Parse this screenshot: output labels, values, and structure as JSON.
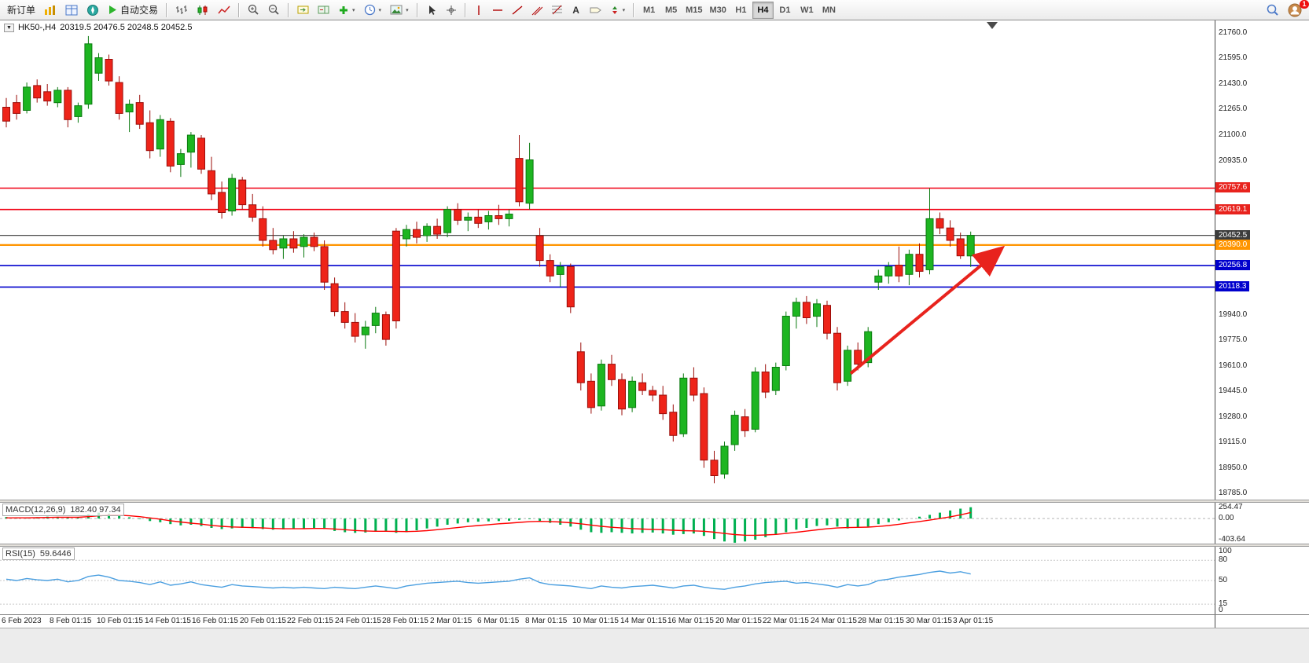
{
  "toolbar": {
    "new_order": "新订单",
    "autotrading": "自动交易",
    "timeframes": [
      "M1",
      "M5",
      "M15",
      "M30",
      "H1",
      "H4",
      "D1",
      "W1",
      "MN"
    ],
    "active_timeframe": "H4",
    "notification_count": "1"
  },
  "icons": {
    "chevron": "▾",
    "title_caret": "▼",
    "text_tool": "A"
  },
  "colors": {
    "up": "#1db521",
    "up_stroke": "#0b7a10",
    "down": "#ee2419",
    "down_stroke": "#9b0e0a",
    "macd_hist": "#00b050",
    "macd_signal": "#ff0000",
    "rsi_line": "#4b9fe0",
    "annotation": "#e8231d"
  },
  "chart": {
    "symbol_period": "HK50-,H4",
    "ohlc_text": "20319.5 20476.5 20248.5 20452.5",
    "axis_ticks": [
      21760,
      21595,
      21430,
      21265,
      21100,
      20935,
      19940,
      19775,
      19610,
      19445,
      19280,
      19115,
      18950,
      18785
    ],
    "levels": [
      {
        "label": "20757.6",
        "price": 20757.6,
        "color": "#f00013",
        "line_width": 1.6,
        "badge": "#e8231d"
      },
      {
        "label": "20619.1",
        "price": 20619.1,
        "color": "#f00013",
        "line_width": 1.6,
        "badge": "#e8231d"
      },
      {
        "label": "20452.5",
        "price": 20452.5,
        "color": "#4a4a4a",
        "line_width": 1.2,
        "badge": "#3c3c3c"
      },
      {
        "label": "20390.0",
        "price": 20390.0,
        "color": "#ff9500",
        "line_width": 2.2,
        "badge": "#ff9500"
      },
      {
        "label": "20256.8",
        "price": 20256.8,
        "color": "#0000cd",
        "line_width": 1.6,
        "badge": "#0000cd"
      },
      {
        "label": "20118.3",
        "price": 20118.3,
        "color": "#0000cd",
        "line_width": 1.6,
        "badge": "#0000cd"
      }
    ]
  },
  "macd": {
    "label": "MACD(12,26,9)",
    "values": "182.40 97.34",
    "axis_ticks": [
      254.47,
      0,
      -403.64
    ]
  },
  "rsi": {
    "label": "RSI(15)",
    "value": "59.6446",
    "levels": [
      80,
      50,
      15
    ],
    "axis_ticks": [
      100,
      80,
      50,
      15,
      0
    ]
  },
  "time_axis": [
    "6 Feb 2023",
    "8 Feb 01:15",
    "10 Feb 01:15",
    "14 Feb 01:15",
    "16 Feb 01:15",
    "20 Feb 01:15",
    "22 Feb 01:15",
    "24 Feb 01:15",
    "28 Feb 01:15",
    "2 Mar 01:15",
    "6 Mar 01:15",
    "8 Mar 01:15",
    "10 Mar 01:15",
    "14 Mar 01:15",
    "16 Mar 01:15",
    "20 Mar 01:15",
    "22 Mar 01:15",
    "24 Mar 01:15",
    "28 Mar 01:15",
    "30 Mar 01:15",
    "3 Apr 01:15"
  ],
  "chart_data": {
    "type": "candlestick",
    "symbol": "HK50-",
    "timeframe": "H4",
    "ylim": [
      18745,
      21841
    ],
    "last_ohlc": {
      "open": 20319.5,
      "high": 20476.5,
      "low": 20248.5,
      "close": 20452.5
    },
    "candles": [
      [
        21280,
        21340,
        21150,
        21190
      ],
      [
        21310,
        21360,
        21200,
        21240
      ],
      [
        21260,
        21440,
        21240,
        21410
      ],
      [
        21420,
        21460,
        21310,
        21340
      ],
      [
        21380,
        21430,
        21290,
        21320
      ],
      [
        21310,
        21410,
        21280,
        21390
      ],
      [
        21390,
        21410,
        21150,
        21200
      ],
      [
        21220,
        21310,
        21180,
        21290
      ],
      [
        21300,
        21740,
        21270,
        21690
      ],
      [
        21500,
        21630,
        21450,
        21600
      ],
      [
        21590,
        21620,
        21420,
        21450
      ],
      [
        21440,
        21480,
        21200,
        21240
      ],
      [
        21250,
        21330,
        21120,
        21300
      ],
      [
        21310,
        21360,
        21140,
        21170
      ],
      [
        21180,
        21260,
        20950,
        21000
      ],
      [
        21010,
        21230,
        20960,
        21200
      ],
      [
        21190,
        21210,
        20860,
        20900
      ],
      [
        20910,
        21010,
        20830,
        20980
      ],
      [
        20990,
        21120,
        20890,
        21100
      ],
      [
        21080,
        21100,
        20850,
        20880
      ],
      [
        20870,
        20960,
        20680,
        20720
      ],
      [
        20730,
        20800,
        20560,
        20600
      ],
      [
        20610,
        20850,
        20580,
        20820
      ],
      [
        20810,
        20830,
        20620,
        20650
      ],
      [
        20650,
        20720,
        20540,
        20570
      ],
      [
        20560,
        20640,
        20380,
        20420
      ],
      [
        20420,
        20500,
        20330,
        20360
      ],
      [
        20370,
        20450,
        20300,
        20430
      ],
      [
        20430,
        20480,
        20340,
        20370
      ],
      [
        20380,
        20460,
        20310,
        20440
      ],
      [
        20440,
        20470,
        20350,
        20380
      ],
      [
        20380,
        20420,
        20100,
        20150
      ],
      [
        20140,
        20180,
        19930,
        19960
      ],
      [
        19960,
        20020,
        19850,
        19890
      ],
      [
        19890,
        19950,
        19760,
        19800
      ],
      [
        19810,
        19900,
        19720,
        19860
      ],
      [
        19870,
        19990,
        19820,
        19950
      ],
      [
        19940,
        19960,
        19740,
        19780
      ],
      [
        20480,
        20500,
        19850,
        19900
      ],
      [
        20430,
        20520,
        20380,
        20490
      ],
      [
        20490,
        20540,
        20400,
        20440
      ],
      [
        20450,
        20530,
        20410,
        20510
      ],
      [
        20510,
        20560,
        20430,
        20460
      ],
      [
        20470,
        20640,
        20440,
        20620
      ],
      [
        20620,
        20660,
        20520,
        20550
      ],
      [
        20550,
        20600,
        20480,
        20570
      ],
      [
        20570,
        20620,
        20500,
        20530
      ],
      [
        20540,
        20610,
        20490,
        20580
      ],
      [
        20580,
        20650,
        20520,
        20560
      ],
      [
        20560,
        20620,
        20510,
        20590
      ],
      [
        20950,
        21100,
        20640,
        20670
      ],
      [
        20660,
        21050,
        20620,
        20940
      ],
      [
        20450,
        20500,
        20250,
        20290
      ],
      [
        20290,
        20330,
        20150,
        20190
      ],
      [
        20200,
        20280,
        20120,
        20250
      ],
      [
        20250,
        20270,
        19950,
        19990
      ],
      [
        19700,
        19760,
        19450,
        19500
      ],
      [
        19510,
        19560,
        19300,
        19340
      ],
      [
        19350,
        19650,
        19320,
        19620
      ],
      [
        19620,
        19680,
        19480,
        19520
      ],
      [
        19520,
        19560,
        19290,
        19330
      ],
      [
        19340,
        19540,
        19310,
        19510
      ],
      [
        19500,
        19560,
        19420,
        19450
      ],
      [
        19450,
        19480,
        19380,
        19420
      ],
      [
        19420,
        19480,
        19260,
        19300
      ],
      [
        19310,
        19360,
        19120,
        19160
      ],
      [
        19170,
        19560,
        19150,
        19530
      ],
      [
        19530,
        19600,
        19380,
        19420
      ],
      [
        19430,
        19470,
        18950,
        19000
      ],
      [
        19000,
        19060,
        18850,
        18900
      ],
      [
        18910,
        19120,
        18880,
        19090
      ],
      [
        19100,
        19320,
        19060,
        19290
      ],
      [
        19280,
        19330,
        19150,
        19190
      ],
      [
        19200,
        19600,
        19180,
        19570
      ],
      [
        19570,
        19620,
        19400,
        19440
      ],
      [
        19450,
        19630,
        19420,
        19600
      ],
      [
        19610,
        19960,
        19580,
        19930
      ],
      [
        19930,
        20050,
        19850,
        20020
      ],
      [
        20020,
        20060,
        19880,
        19920
      ],
      [
        19930,
        20040,
        19860,
        20010
      ],
      [
        20000,
        20030,
        19780,
        19820
      ],
      [
        19820,
        19860,
        19450,
        19500
      ],
      [
        19510,
        19740,
        19480,
        19710
      ],
      [
        19710,
        19760,
        19580,
        19620
      ],
      [
        19630,
        19860,
        19600,
        19830
      ],
      [
        20150,
        20230,
        20100,
        20190
      ],
      [
        20190,
        20280,
        20140,
        20250
      ],
      [
        20260,
        20380,
        20150,
        20190
      ],
      [
        20200,
        20360,
        20130,
        20330
      ],
      [
        20330,
        20400,
        20180,
        20220
      ],
      [
        20230,
        20757,
        20200,
        20560
      ],
      [
        20560,
        20600,
        20460,
        20500
      ],
      [
        20500,
        20550,
        20380,
        20420
      ],
      [
        20430,
        20470,
        20300,
        20320
      ],
      [
        20319.5,
        20476.5,
        20248.5,
        20452.5
      ]
    ],
    "macd_ylim": [
      -403.64,
      254.47
    ],
    "macd_hist": [
      25,
      20,
      15,
      22,
      30,
      28,
      18,
      24,
      70,
      95,
      80,
      55,
      20,
      -10,
      -40,
      -60,
      -90,
      -110,
      -100,
      -120,
      -150,
      -170,
      -160,
      -150,
      -155,
      -170,
      -180,
      -175,
      -165,
      -160,
      -155,
      -170,
      -200,
      -220,
      -230,
      -225,
      -210,
      -200,
      -230,
      -220,
      -190,
      -160,
      -130,
      -100,
      -80,
      -60,
      -50,
      -45,
      -40,
      -35,
      -20,
      -10,
      -40,
      -70,
      -100,
      -130,
      -180,
      -220,
      -230,
      -220,
      -230,
      -240,
      -230,
      -225,
      -240,
      -260,
      -250,
      -240,
      -280,
      -330,
      -370,
      -390,
      -370,
      -340,
      -300,
      -260,
      -220,
      -180,
      -150,
      -120,
      -110,
      -130,
      -160,
      -150,
      -130,
      -90,
      -60,
      -30,
      0,
      30,
      60,
      95,
      130,
      160,
      182
    ],
    "macd_signal": [
      10,
      12,
      12,
      14,
      18,
      20,
      20,
      20,
      30,
      45,
      55,
      55,
      45,
      30,
      10,
      -10,
      -35,
      -55,
      -75,
      -90,
      -110,
      -125,
      -135,
      -140,
      -145,
      -152,
      -160,
      -165,
      -165,
      -163,
      -160,
      -160,
      -168,
      -180,
      -192,
      -200,
      -205,
      -205,
      -208,
      -210,
      -205,
      -195,
      -180,
      -162,
      -145,
      -128,
      -112,
      -98,
      -85,
      -75,
      -62,
      -50,
      -45,
      -48,
      -55,
      -68,
      -85,
      -105,
      -125,
      -140,
      -152,
      -162,
      -170,
      -175,
      -180,
      -188,
      -195,
      -198,
      -205,
      -220,
      -240,
      -258,
      -268,
      -270,
      -265,
      -255,
      -240,
      -222,
      -202,
      -182,
      -165,
      -152,
      -145,
      -142,
      -138,
      -128,
      -112,
      -92,
      -70,
      -48,
      -25,
      0,
      28,
      60,
      97
    ],
    "rsi_series": [
      52,
      50,
      53,
      51,
      50,
      52,
      48,
      50,
      56,
      58,
      55,
      50,
      49,
      47,
      44,
      48,
      43,
      45,
      48,
      44,
      42,
      40,
      44,
      42,
      41,
      40,
      39,
      40,
      39,
      40,
      39,
      38,
      40,
      39,
      38,
      40,
      42,
      40,
      38,
      42,
      44,
      46,
      47,
      48,
      49,
      47,
      46,
      47,
      48,
      49,
      52,
      54,
      47,
      44,
      43,
      42,
      40,
      38,
      42,
      40,
      39,
      41,
      42,
      43,
      41,
      39,
      42,
      43,
      40,
      38,
      37,
      40,
      42,
      45,
      47,
      48,
      49,
      46,
      47,
      45,
      43,
      40,
      44,
      42,
      44,
      50,
      52,
      55,
      57,
      59,
      62,
      64,
      61,
      63,
      59.6
    ],
    "annotation_arrow": {
      "from": {
        "x": 1082,
        "price": 19560
      },
      "to": {
        "x": 1272,
        "price": 20360
      }
    }
  }
}
